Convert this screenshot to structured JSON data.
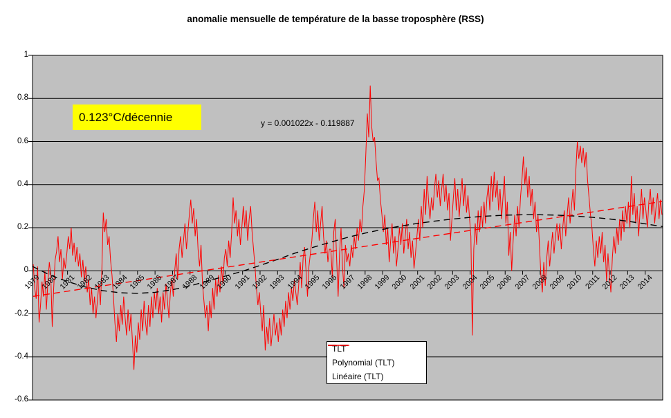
{
  "title": "anomalie mensuelle de température de la basse troposphère (RSS)",
  "annotation": {
    "text": "0.123°C/décennie",
    "bg_color": "#FFFF00",
    "text_color": "#000000"
  },
  "equation_label": "y = 0.001022x - 0.119887",
  "legend": {
    "items": [
      {
        "label": "TLT",
        "color": "#FF0000",
        "dash": false
      },
      {
        "label": "Polynomial (TLT)",
        "color": "#000000",
        "dash": true
      },
      {
        "label": "Linéaire (TLT)",
        "color": "#FF0000",
        "dash": true
      }
    ]
  },
  "colors": {
    "series": "#FF0000",
    "polynomial": "#000000",
    "linear": "#FF0000",
    "plot_bg": "#C0C0C0",
    "grid": "#000000",
    "page_bg": "#FFFFFF",
    "annotation_bg": "#FFFF00"
  },
  "chart_data": {
    "type": "line",
    "title": "anomalie mensuelle de température de la basse troposphère (RSS)",
    "xlabel": "",
    "ylabel": "",
    "grid": "horizontal-only",
    "legend_position": "inside-bottom-center",
    "ylim": [
      -0.6,
      1
    ],
    "y_tick_values": [
      1,
      0.8,
      0.6,
      0.4,
      0.2,
      0,
      -0.2,
      -0.4,
      -0.6
    ],
    "y_tick_labels": [
      "1",
      "0.8",
      "0.6",
      "0.4",
      "0.2",
      "0",
      "-0.2",
      "-0.4",
      "-0.6"
    ],
    "x_categories_years": [
      "1979",
      "1980",
      "1981",
      "1982",
      "1983",
      "1984",
      "1985",
      "1986",
      "1987",
      "1988",
      "1989",
      "1990",
      "1991",
      "1992",
      "1993",
      "1994",
      "1995",
      "1996",
      "1997",
      "1998",
      "1999",
      "2000",
      "2001",
      "2002",
      "2003",
      "2004",
      "2005",
      "2006",
      "2007",
      "2008",
      "2009",
      "2010",
      "2011",
      "2012",
      "2013",
      "2014"
    ],
    "series": {
      "tlt": {
        "name": "TLT",
        "color": "#FF0000",
        "monthly_values_by_year": {
          "1979": [
            0.03,
            -0.08,
            -0.13,
            0.02,
            -0.24,
            -0.16,
            -0.05,
            -0.12,
            0.0,
            -0.18,
            -0.06,
            0.04
          ],
          "1980": [
            -0.02,
            -0.26,
            -0.08,
            0.05,
            0.09,
            0.16,
            0.04,
            0.1,
            -0.04,
            0.06,
            0.01,
            0.08
          ],
          "1981": [
            0.16,
            0.1,
            0.2,
            0.07,
            0.13,
            0.04,
            0.11,
            0.02,
            0.08,
            -0.03,
            0.05,
            -0.05
          ],
          "1982": [
            0.02,
            -0.1,
            -0.04,
            -0.16,
            -0.08,
            -0.2,
            -0.12,
            -0.22,
            -0.14,
            -0.06,
            -0.16,
            0.0
          ],
          "1983": [
            0.27,
            0.18,
            0.24,
            0.12,
            0.16,
            0.05,
            -0.02,
            -0.12,
            -0.24,
            -0.33,
            -0.2,
            -0.28
          ],
          "1984": [
            -0.16,
            -0.25,
            -0.12,
            -0.22,
            -0.3,
            -0.18,
            -0.28,
            -0.2,
            -0.33,
            -0.46,
            -0.3,
            -0.38
          ],
          "1985": [
            -0.24,
            -0.32,
            -0.18,
            -0.28,
            -0.14,
            -0.24,
            -0.3,
            -0.16,
            -0.26,
            -0.12,
            -0.22,
            -0.1
          ],
          "1986": [
            -0.18,
            -0.08,
            -0.2,
            -0.12,
            -0.24,
            -0.1,
            -0.18,
            -0.06,
            -0.14,
            -0.22,
            -0.1,
            -0.04
          ],
          "1987": [
            -0.12,
            0.0,
            0.08,
            -0.04,
            0.1,
            0.16,
            0.06,
            0.14,
            0.22,
            0.1,
            0.18,
            0.26
          ],
          "1988": [
            0.33,
            0.22,
            0.29,
            0.16,
            0.24,
            0.1,
            0.02,
            0.12,
            -0.06,
            -0.14,
            -0.22,
            -0.16
          ],
          "1989": [
            -0.28,
            -0.14,
            -0.22,
            -0.08,
            -0.18,
            -0.04,
            -0.12,
            -0.02,
            -0.1,
            0.02,
            -0.06,
            0.06
          ],
          "1990": [
            0.1,
            0.02,
            0.14,
            0.06,
            0.18,
            0.34,
            0.22,
            0.28,
            0.16,
            0.24,
            0.12,
            0.2
          ],
          "1991": [
            0.3,
            0.2,
            0.28,
            0.14,
            0.24,
            0.3,
            0.18,
            0.1,
            0.02,
            -0.08,
            -0.16,
            -0.1
          ],
          "1992": [
            -0.2,
            -0.28,
            -0.16,
            -0.37,
            -0.26,
            -0.34,
            -0.22,
            -0.35,
            -0.28,
            -0.2,
            -0.3,
            -0.24
          ],
          "1993": [
            -0.33,
            -0.22,
            -0.3,
            -0.18,
            -0.26,
            -0.14,
            -0.22,
            -0.1,
            -0.18,
            -0.08,
            -0.14,
            -0.04
          ],
          "1994": [
            -0.1,
            -0.16,
            -0.06,
            0.04,
            -0.08,
            0.06,
            0.11,
            0.0,
            -0.12,
            0.02,
            0.08,
            0.14
          ],
          "1995": [
            0.24,
            0.32,
            0.18,
            0.28,
            0.14,
            0.22,
            0.3,
            0.16,
            0.08,
            0.14,
            0.04,
            0.1
          ],
          "1996": [
            0.1,
            -0.03,
            0.18,
            0.24,
            0.05,
            -0.12,
            0.08,
            0.2,
            0.02,
            -0.08,
            0.12,
            0.04
          ],
          "1997": [
            0.08,
            0.02,
            0.12,
            0.06,
            0.16,
            0.1,
            0.2,
            0.14,
            0.24,
            0.18,
            0.3,
            0.38
          ],
          "1998": [
            0.55,
            0.73,
            0.62,
            0.86,
            0.67,
            0.6,
            0.62,
            0.51,
            0.42,
            0.43,
            0.33,
            0.26
          ],
          "1999": [
            0.18,
            0.26,
            0.12,
            0.2,
            0.04,
            0.14,
            0.22,
            0.08,
            0.16,
            0.02,
            0.1,
            0.2
          ],
          "2000": [
            0.12,
            0.22,
            0.08,
            0.16,
            0.24,
            0.1,
            0.18,
            0.06,
            0.14,
            0.01,
            0.08,
            0.16
          ],
          "2001": [
            0.24,
            0.14,
            0.3,
            0.2,
            0.38,
            0.26,
            0.44,
            0.32,
            0.24,
            0.34,
            0.28,
            0.38
          ],
          "2002": [
            0.45,
            0.34,
            0.42,
            0.3,
            0.38,
            0.45,
            0.32,
            0.4,
            0.28,
            0.36,
            0.14,
            0.24
          ],
          "2003": [
            0.34,
            0.43,
            0.28,
            0.38,
            0.25,
            0.35,
            0.43,
            0.3,
            0.4,
            0.27,
            0.35,
            0.25
          ],
          "2004": [
            0.16,
            -0.3,
            0.1,
            0.22,
            0.12,
            0.28,
            0.18,
            0.3,
            0.2,
            0.32,
            0.22,
            0.34
          ],
          "2005": [
            0.4,
            0.28,
            0.44,
            0.32,
            0.46,
            0.34,
            0.42,
            0.28,
            0.38,
            0.24,
            0.34,
            0.44
          ],
          "2006": [
            0.22,
            0.32,
            0.07,
            0.18,
            0.0,
            0.14,
            0.26,
            0.16,
            0.3,
            0.2,
            0.34,
            0.42
          ],
          "2007": [
            0.53,
            0.4,
            0.48,
            0.34,
            0.44,
            0.3,
            0.38,
            0.24,
            0.32,
            0.18,
            0.26,
            0.12
          ],
          "2008": [
            -0.02,
            -0.1,
            0.04,
            -0.07,
            0.06,
            0.14,
            0.02,
            0.1,
            0.18,
            0.08,
            0.16,
            0.22
          ],
          "2009": [
            0.14,
            0.22,
            0.1,
            0.2,
            0.28,
            0.16,
            0.26,
            0.34,
            0.22,
            0.3,
            0.38,
            0.28
          ],
          "2010": [
            0.47,
            0.6,
            0.52,
            0.58,
            0.5,
            0.57,
            0.48,
            0.55,
            0.42,
            0.34,
            0.26,
            0.2
          ],
          "2011": [
            0.1,
            0.02,
            0.14,
            0.06,
            0.16,
            0.08,
            0.18,
            0.04,
            0.12,
            -0.05,
            0.08,
            -0.02
          ],
          "2012": [
            -0.1,
            0.06,
            0.16,
            0.08,
            0.2,
            0.12,
            0.24,
            0.14,
            0.28,
            0.18,
            0.3,
            0.22
          ],
          "2013": [
            0.32,
            0.2,
            0.44,
            0.26,
            0.36,
            0.22,
            0.3,
            0.16,
            0.28,
            0.38,
            0.24,
            0.34
          ],
          "2014": [
            0.28,
            0.2,
            0.32,
            0.38,
            0.26,
            0.34,
            0.22,
            0.3,
            0.36,
            0.24,
            0.33,
            0.26
          ]
        }
      },
      "polynomial": {
        "name": "Polynomial (TLT)",
        "color": "#000000",
        "style": "dashed",
        "yearly_points_1979_to_2015": [
          0.02,
          -0.02,
          -0.05,
          -0.075,
          -0.092,
          -0.102,
          -0.105,
          -0.1,
          -0.088,
          -0.07,
          -0.048,
          -0.025,
          -0.002,
          0.025,
          0.053,
          0.082,
          0.108,
          0.132,
          0.155,
          0.175,
          0.192,
          0.207,
          0.22,
          0.231,
          0.24,
          0.248,
          0.254,
          0.258,
          0.26,
          0.26,
          0.258,
          0.254,
          0.248,
          0.24,
          0.23,
          0.218,
          0.205
        ]
      },
      "linear": {
        "name": "Linéaire (TLT)",
        "color": "#FF0000",
        "style": "dashed",
        "slope_per_month": 0.001022,
        "intercept": -0.119887,
        "trend_per_decade_c": 0.123
      }
    }
  }
}
